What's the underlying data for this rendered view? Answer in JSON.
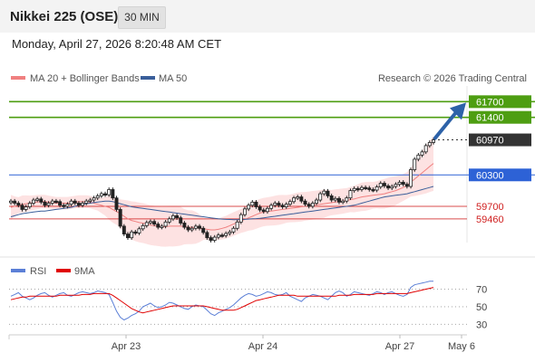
{
  "header": {
    "title": "Nikkei 225 (OSE)",
    "timeframe": "30 MIN",
    "datetime": "Monday, April 27, 2026 8:20:48 AM CET"
  },
  "legend": {
    "ma20": "MA 20 + Bollinger Bands",
    "ma50": "MA 50",
    "credit": "Research © 2026 Trading Central",
    "ma20_color": "#f08080",
    "ma50_color": "#3a5f9a"
  },
  "rsi_legend": {
    "rsi": "RSI",
    "ma9": "9MA",
    "rsi_color": "#5b7fd6",
    "ma9_color": "#e00000"
  },
  "chart_data": [
    {
      "type": "line",
      "title": "",
      "x_ticks": [
        "Apr 23",
        "Apr 24",
        "Apr 27",
        "May 6"
      ],
      "y_range": [
        58800,
        62000
      ],
      "levels": [
        {
          "value": 61700,
          "label": "61700",
          "kind": "resistance",
          "color": "#4e9e12"
        },
        {
          "value": 61400,
          "label": "61400",
          "kind": "resistance",
          "color": "#4e9e12"
        },
        {
          "value": 60970,
          "label": "60970",
          "kind": "last_price",
          "color": "#333333"
        },
        {
          "value": 60300,
          "label": "60300",
          "kind": "pivot",
          "color": "#2d62d6"
        },
        {
          "value": 59700,
          "label": "59700",
          "kind": "support",
          "color": "#d02020"
        },
        {
          "value": 59460,
          "label": "59460",
          "kind": "support",
          "color": "#d02020"
        }
      ],
      "price_close": [
        59800,
        59760,
        59720,
        59640,
        59690,
        59760,
        59820,
        59840,
        59780,
        59720,
        59760,
        59800,
        59790,
        59720,
        59700,
        59740,
        59800,
        59760,
        59720,
        59760,
        59800,
        59820,
        59860,
        59900,
        59940,
        59920,
        60020,
        59860,
        59640,
        59320,
        59170,
        59100,
        59210,
        59190,
        59270,
        59330,
        59390,
        59410,
        59360,
        59300,
        59320,
        59400,
        59460,
        59520,
        59480,
        59380,
        59300,
        59250,
        59280,
        59320,
        59280,
        59200,
        59100,
        59050,
        59110,
        59150,
        59140,
        59180,
        59210,
        59280,
        59400,
        59540,
        59650,
        59720,
        59780,
        59690,
        59630,
        59600,
        59660,
        59720,
        59760,
        59720,
        59690,
        59740,
        59790,
        59860,
        59880,
        59800,
        59740,
        59700,
        59760,
        59820,
        59940,
        59990,
        59900,
        59820,
        59850,
        59780,
        59800,
        59860,
        60000,
        60040,
        60020,
        60060,
        60050,
        60020,
        60010,
        60070,
        60140,
        60090,
        60050,
        60080,
        60120,
        60160,
        60120,
        60080,
        60400,
        60600,
        60680,
        60740,
        60860,
        60920,
        60970
      ],
      "ma20": [
        59680,
        59700,
        59720,
        59740,
        59750,
        59760,
        59770,
        59780,
        59790,
        59790,
        59780,
        59770,
        59760,
        59760,
        59760,
        59760,
        59770,
        59780,
        59790,
        59790,
        59790,
        59780,
        59760,
        59740,
        59720,
        59700,
        59680,
        59640,
        59600,
        59560,
        59510,
        59460,
        59430,
        59410,
        59390,
        59380,
        59360,
        59340,
        59330,
        59320,
        59310,
        59310,
        59320,
        59320,
        59320,
        59320,
        59310,
        59300,
        59300,
        59290,
        59280,
        59270,
        59260,
        59250,
        59250,
        59260,
        59280,
        59300,
        59330,
        59360,
        59390,
        59420,
        59450,
        59480,
        59510,
        59540,
        59570,
        59590,
        59600,
        59610,
        59620,
        59630,
        59640,
        59650,
        59660,
        59670,
        59680,
        59690,
        59700,
        59710,
        59720,
        59730,
        59740,
        59750,
        59760,
        59770,
        59780,
        59790,
        59800,
        59810,
        59830,
        59840,
        59860,
        59880,
        59890,
        59900,
        59910,
        59920,
        59930,
        59940,
        59960,
        59980,
        60000,
        60030,
        60060,
        60100,
        60160,
        60220,
        60280,
        60340,
        60400,
        60460,
        60520
      ],
      "ma50": [
        59500,
        59520,
        59540,
        59560,
        59570,
        59580,
        59590,
        59600,
        59610,
        59610,
        59620,
        59630,
        59640,
        59650,
        59660,
        59670,
        59680,
        59700,
        59720,
        59740,
        59750,
        59760,
        59770,
        59780,
        59790,
        59800,
        59800,
        59790,
        59770,
        59750,
        59730,
        59710,
        59690,
        59680,
        59670,
        59660,
        59650,
        59640,
        59630,
        59620,
        59610,
        59600,
        59590,
        59580,
        59570,
        59560,
        59550,
        59540,
        59530,
        59520,
        59510,
        59500,
        59490,
        59480,
        59470,
        59460,
        59455,
        59450,
        59448,
        59446,
        59446,
        59448,
        59450,
        59455,
        59460,
        59465,
        59470,
        59480,
        59490,
        59500,
        59510,
        59520,
        59530,
        59540,
        59550,
        59560,
        59570,
        59580,
        59590,
        59600,
        59610,
        59620,
        59630,
        59640,
        59650,
        59660,
        59670,
        59680,
        59690,
        59700,
        59710,
        59720,
        59740,
        59760,
        59780,
        59800,
        59820,
        59840,
        59860,
        59880,
        59890,
        59900,
        59910,
        59920,
        59930,
        59940,
        59960,
        59980,
        60000,
        60020,
        60040,
        60060,
        60080
      ]
    },
    {
      "type": "line",
      "title": "",
      "y_range": [
        20,
        85
      ],
      "y_ticks": [
        70,
        50,
        30
      ],
      "rsi": [
        62,
        64,
        66,
        62,
        60,
        58,
        60,
        63,
        65,
        66,
        63,
        61,
        63,
        65,
        66,
        63,
        62,
        64,
        66,
        67,
        66,
        65,
        66,
        68,
        67,
        66,
        64,
        55,
        45,
        38,
        35,
        37,
        40,
        42,
        45,
        50,
        52,
        54,
        51,
        49,
        50,
        52,
        55,
        54,
        52,
        50,
        48,
        47,
        50,
        52,
        51,
        50,
        46,
        42,
        40,
        43,
        45,
        47,
        49,
        52,
        56,
        60,
        63,
        65,
        64,
        62,
        63,
        65,
        67,
        66,
        64,
        63,
        64,
        66,
        62,
        60,
        58,
        56,
        60,
        62,
        64,
        63,
        62,
        60,
        58,
        62,
        66,
        68,
        66,
        62,
        64,
        67,
        66,
        65,
        64,
        63,
        65,
        67,
        66,
        64,
        66,
        67,
        65,
        63,
        62,
        64,
        72,
        75,
        76,
        77,
        78,
        79,
        79
      ],
      "ma9": [
        58,
        59,
        60,
        61,
        61,
        62,
        62,
        62,
        62,
        62,
        62,
        62,
        62,
        63,
        63,
        63,
        63,
        63,
        63,
        64,
        64,
        64,
        65,
        65,
        65,
        65,
        65,
        63,
        60,
        57,
        54,
        51,
        48,
        46,
        44,
        43,
        44,
        45,
        46,
        47,
        48,
        49,
        50,
        51,
        51,
        51,
        51,
        51,
        51,
        51,
        51,
        51,
        50,
        49,
        48,
        47,
        46,
        46,
        46,
        46,
        47,
        49,
        51,
        53,
        55,
        57,
        58,
        59,
        60,
        61,
        62,
        63,
        63,
        63,
        63,
        63,
        62,
        62,
        62,
        62,
        62,
        62,
        62,
        62,
        62,
        62,
        62,
        63,
        63,
        63,
        63,
        64,
        64,
        64,
        64,
        64,
        64,
        65,
        65,
        65,
        65,
        65,
        65,
        65,
        65,
        65,
        66,
        67,
        68,
        69,
        70,
        71,
        72
      ]
    }
  ]
}
